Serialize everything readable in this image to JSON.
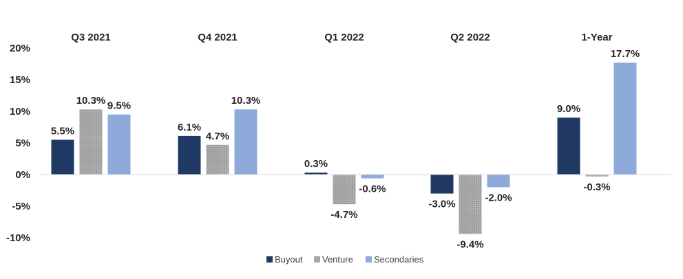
{
  "chart_data": {
    "type": "bar",
    "title": "",
    "xlabel": "",
    "ylabel": "",
    "categories": [
      "Q3 2021",
      "Q4 2021",
      "Q1 2022",
      "Q2 2022",
      "1-Year"
    ],
    "ylim": [
      -10,
      20
    ],
    "yticks": [
      20,
      15,
      10,
      5,
      0,
      -5,
      -10
    ],
    "ytick_labels": [
      "20%",
      "15%",
      "10%",
      "5%",
      "0%",
      "-5%",
      "-10%"
    ],
    "grid": false,
    "legend_position": "bottom",
    "category_labels_position": "top",
    "series": [
      {
        "name": "Buyout",
        "color": "#1f3864",
        "pattern": "solid",
        "values": [
          5.5,
          6.1,
          0.3,
          -3.0,
          9.0
        ],
        "labels": [
          "5.5%",
          "6.1%",
          "0.3%",
          "-3.0%",
          "9.0%"
        ]
      },
      {
        "name": "Venture",
        "color": "#a6a6a6",
        "pattern": "dotted",
        "values": [
          10.3,
          4.7,
          -4.7,
          -9.4,
          -0.3
        ],
        "labels": [
          "10.3%",
          "4.7%",
          "-4.7%",
          "-9.4%",
          "-0.3%"
        ]
      },
      {
        "name": "Secondaries",
        "color": "#8eaadb",
        "pattern": "solid",
        "values": [
          9.5,
          10.3,
          -0.6,
          -2.0,
          17.7
        ],
        "labels": [
          "9.5%",
          "10.3%",
          "-0.6%",
          "-2.0%",
          "17.7%"
        ]
      }
    ]
  }
}
